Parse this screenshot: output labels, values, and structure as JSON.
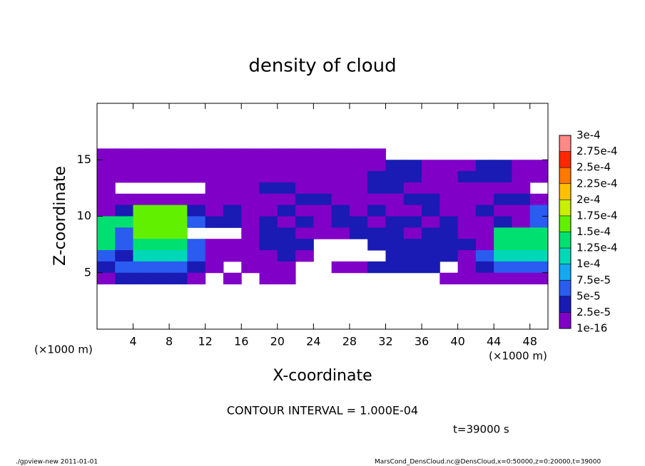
{
  "chart_data": {
    "type": "contour",
    "title": "density of cloud",
    "xlabel": "X-coordinate",
    "ylabel": "Z-coordinate",
    "xunit": "(×1000 m)",
    "yunit": "(×1000 m)",
    "note": "CONTOUR INTERVAL = 1.000E-04",
    "time": "t=39000 s",
    "footer_left": "./gpview-new   2011-01-01",
    "footer_right": "MarsCond_DensCloud.nc@DensCloud,x=0:50000,z=0:20000,t=39000",
    "xlim": [
      0,
      50
    ],
    "ylim": [
      0,
      20
    ],
    "xticks": [
      4,
      8,
      12,
      16,
      20,
      24,
      28,
      32,
      36,
      40,
      44,
      48
    ],
    "yticks": [
      5,
      10,
      15
    ],
    "xbins": [
      0,
      2,
      4,
      6,
      8,
      10,
      12,
      14,
      16,
      18,
      20,
      22,
      24,
      26,
      28,
      30,
      32,
      34,
      36,
      38,
      40,
      42,
      44,
      46,
      48,
      50
    ],
    "zbins": [
      16,
      15,
      14,
      13,
      12,
      11,
      10,
      9,
      8,
      7,
      6,
      5,
      4
    ],
    "values": [
      [
        1e-05,
        1e-05,
        1e-05,
        1e-05,
        1e-05,
        1e-05,
        1e-05,
        1e-05,
        1e-05,
        1e-05,
        1e-05,
        1e-05,
        1e-05,
        1e-05,
        1e-05,
        1e-05,
        null,
        null,
        null,
        null,
        null,
        null,
        null,
        null,
        null
      ],
      [
        1e-05,
        1e-05,
        1e-05,
        1e-05,
        1e-05,
        1e-05,
        1e-05,
        1e-05,
        1e-05,
        1e-05,
        1e-05,
        1e-05,
        1e-05,
        1e-05,
        1e-05,
        1e-05,
        3e-05,
        3e-05,
        1e-05,
        1e-05,
        1e-05,
        3e-05,
        3e-05,
        1e-05,
        1e-05
      ],
      [
        1e-05,
        1e-05,
        1e-05,
        1e-05,
        1e-05,
        1e-05,
        1e-05,
        1e-05,
        1e-05,
        1e-05,
        1e-05,
        1e-05,
        1e-05,
        1e-05,
        1e-05,
        3e-05,
        3e-05,
        3e-05,
        1e-05,
        1e-05,
        3e-05,
        3e-05,
        3e-05,
        1e-05,
        1e-05
      ],
      [
        1e-05,
        null,
        null,
        null,
        null,
        null,
        1e-05,
        1e-05,
        1e-05,
        3e-05,
        3e-05,
        1e-05,
        1e-05,
        1e-05,
        1e-05,
        3e-05,
        3e-05,
        1e-05,
        1e-05,
        1e-05,
        1e-05,
        1e-05,
        1e-05,
        1e-05,
        null
      ],
      [
        1e-05,
        1e-05,
        1e-05,
        1e-05,
        1e-05,
        1e-05,
        1e-05,
        1e-05,
        1e-05,
        1e-05,
        1e-05,
        3e-05,
        3e-05,
        1e-05,
        1e-05,
        1e-05,
        1e-05,
        3e-05,
        3e-05,
        1e-05,
        1e-05,
        1e-05,
        3e-05,
        3e-05,
        1e-05
      ],
      [
        1e-05,
        3e-05,
        0.00016,
        0.00016,
        0.00016,
        3e-05,
        1e-05,
        3e-05,
        1e-05,
        1e-05,
        3e-05,
        1e-05,
        1e-05,
        3e-05,
        1e-05,
        3e-05,
        1e-05,
        1e-05,
        3e-05,
        1e-05,
        1e-05,
        3e-05,
        1e-05,
        1e-05,
        6e-05
      ],
      [
        0.00013,
        0.00013,
        0.00016,
        0.00016,
        0.00016,
        6e-05,
        3e-05,
        3e-05,
        1e-05,
        3e-05,
        1e-05,
        3e-05,
        1e-05,
        3e-05,
        3e-05,
        1e-05,
        3e-05,
        3e-05,
        1e-05,
        3e-05,
        1e-05,
        1e-05,
        3e-05,
        1e-05,
        6e-05
      ],
      [
        0.00013,
        6e-05,
        0.00015,
        0.00015,
        0.00015,
        null,
        null,
        null,
        1e-05,
        3e-05,
        3e-05,
        1e-05,
        1e-05,
        1e-05,
        3e-05,
        3e-05,
        3e-05,
        1e-05,
        3e-05,
        3e-05,
        1e-05,
        1e-05,
        0.00013,
        0.00013,
        0.00013
      ],
      [
        0.00013,
        6e-05,
        0.00014,
        0.00014,
        0.00014,
        6e-05,
        1e-05,
        1e-05,
        1e-05,
        3e-05,
        3e-05,
        3e-05,
        null,
        null,
        null,
        3e-05,
        3e-05,
        3e-05,
        3e-05,
        3e-05,
        3e-05,
        1e-05,
        0.00013,
        0.00013,
        0.00013
      ],
      [
        6e-05,
        3e-05,
        0.00012,
        0.00012,
        0.00012,
        6e-05,
        1e-05,
        1e-05,
        1e-05,
        1e-05,
        3e-05,
        1e-05,
        null,
        null,
        null,
        null,
        3e-05,
        3e-05,
        3e-05,
        3e-05,
        1e-05,
        6e-05,
        0.00012,
        0.00012,
        0.00012
      ],
      [
        3e-05,
        6e-05,
        6e-05,
        6e-05,
        6e-05,
        3e-05,
        1e-05,
        null,
        1e-05,
        1e-05,
        1e-05,
        null,
        null,
        1e-05,
        1e-05,
        3e-05,
        3e-05,
        3e-05,
        3e-05,
        null,
        1e-05,
        3e-05,
        6e-05,
        6e-05,
        6e-05
      ],
      [
        1e-05,
        3e-05,
        3e-05,
        3e-05,
        3e-05,
        1e-05,
        null,
        1e-05,
        null,
        1e-05,
        1e-05,
        null,
        null,
        null,
        null,
        null,
        null,
        null,
        null,
        1e-05,
        1e-05,
        1e-05,
        1e-05,
        1e-05,
        1e-05
      ]
    ],
    "levels": [
      {
        "value": 1e-16,
        "label": "1e-16"
      },
      {
        "value": 2.5e-05,
        "label": "2.5e-5"
      },
      {
        "value": 5e-05,
        "label": "5e-5"
      },
      {
        "value": 7.5e-05,
        "label": "7.5e-5"
      },
      {
        "value": 0.0001,
        "label": "1e-4"
      },
      {
        "value": 0.000125,
        "label": "1.25e-4"
      },
      {
        "value": 0.00015,
        "label": "1.5e-4"
      },
      {
        "value": 0.000175,
        "label": "1.75e-4"
      },
      {
        "value": 0.0002,
        "label": "2e-4"
      },
      {
        "value": 0.000225,
        "label": "2.25e-4"
      },
      {
        "value": 0.00025,
        "label": "2.5e-4"
      },
      {
        "value": 0.000275,
        "label": "2.75e-4"
      },
      {
        "value": 0.0003,
        "label": "3e-4"
      }
    ],
    "level_colors": [
      "#8000c8",
      "#1a1ab4",
      "#2a5cf0",
      "#14a8f0",
      "#00d8b8",
      "#00e070",
      "#60f000",
      "#c8f000",
      "#ffc000",
      "#ff7800",
      "#ff2800",
      "#ff8888"
    ]
  }
}
